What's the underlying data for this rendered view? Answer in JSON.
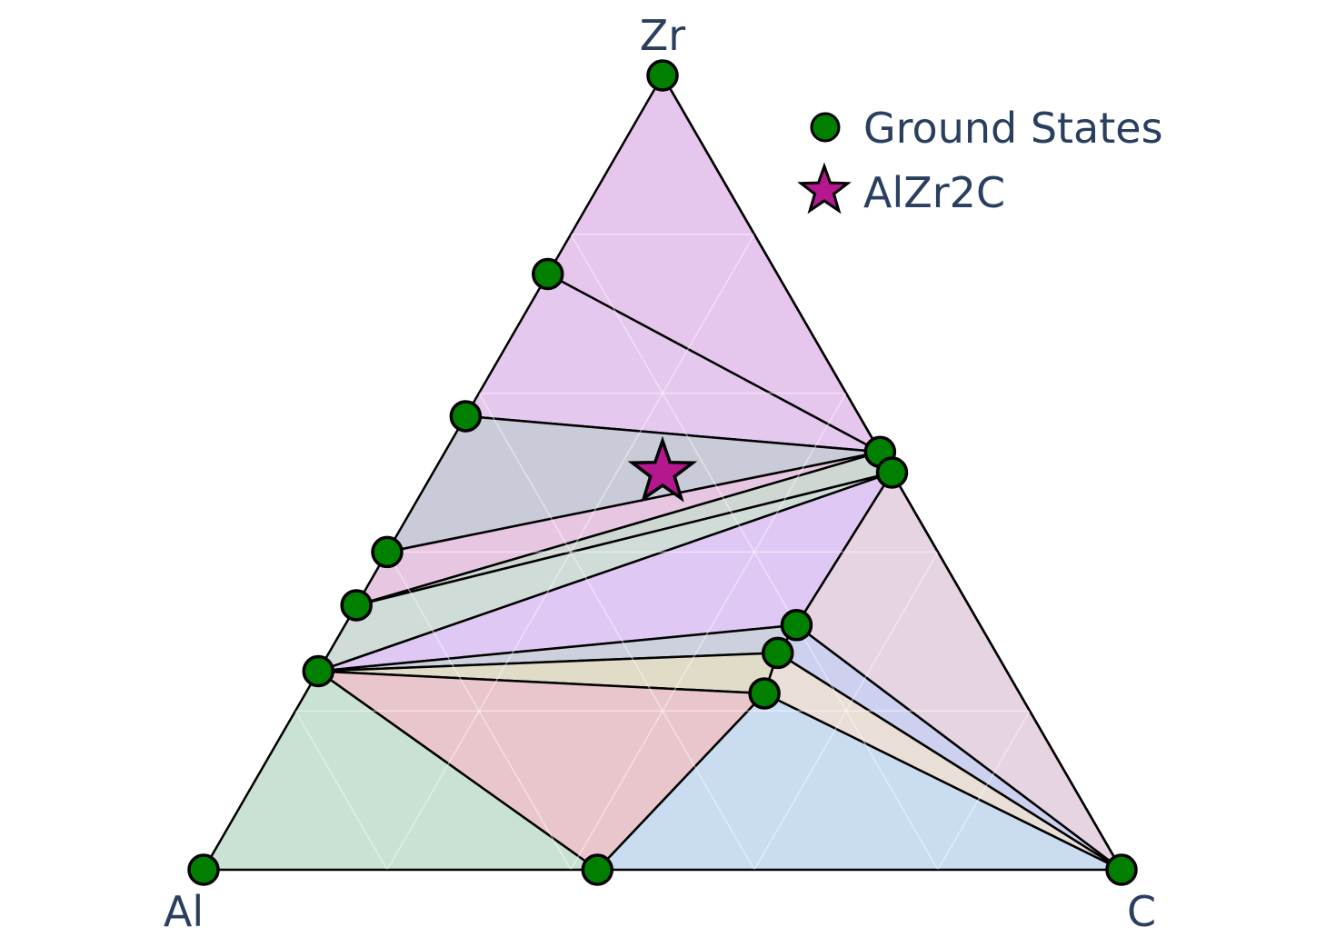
{
  "chart_data": {
    "type": "ternary",
    "corner_labels": {
      "left": "Al",
      "top": "Zr",
      "right": "C"
    },
    "grid": true,
    "legend_position": "top-right",
    "series": [
      {
        "name": "Ground States",
        "marker": "circle",
        "color": "#007f00",
        "points": [
          {
            "Al": 1.0,
            "Zr": 0.0,
            "C": 0.0
          },
          {
            "Al": 0.0,
            "Zr": 1.0,
            "C": 0.0
          },
          {
            "Al": 0.0,
            "Zr": 0.0,
            "C": 1.0
          },
          {
            "Al": 0.571,
            "Zr": 0.0,
            "C": 0.429
          },
          {
            "Al": 0.25,
            "Zr": 0.75,
            "C": 0.0
          },
          {
            "Al": 0.429,
            "Zr": 0.571,
            "C": 0.0
          },
          {
            "Al": 0.6,
            "Zr": 0.4,
            "C": 0.0
          },
          {
            "Al": 0.667,
            "Zr": 0.333,
            "C": 0.0
          },
          {
            "Al": 0.75,
            "Zr": 0.25,
            "C": 0.0
          },
          {
            "Al": 0.0,
            "Zr": 0.526,
            "C": 0.474
          },
          {
            "Al": 0.0,
            "Zr": 0.5,
            "C": 0.5
          },
          {
            "Al": 0.2,
            "Zr": 0.308,
            "C": 0.492
          },
          {
            "Al": 0.238,
            "Zr": 0.273,
            "C": 0.489
          },
          {
            "Al": 0.278,
            "Zr": 0.222,
            "C": 0.5
          }
        ]
      },
      {
        "name": "AlZr2C",
        "marker": "star",
        "color": "#b5178f",
        "points": [
          {
            "Al": 0.25,
            "Zr": 0.5,
            "C": 0.25
          }
        ]
      }
    ],
    "facets": [
      {
        "vertices": [
          1,
          4,
          9
        ],
        "color": "#e6c6ec"
      },
      {
        "vertices": [
          4,
          5,
          9
        ],
        "color": "#e4c8ee"
      },
      {
        "vertices": [
          5,
          6,
          9
        ],
        "color": "#c9ccd8"
      },
      {
        "vertices": [
          6,
          7,
          9
        ],
        "color": "#e7c6e2"
      },
      {
        "vertices": [
          7,
          10,
          9
        ],
        "color": "#cfd7d3"
      },
      {
        "vertices": [
          7,
          8,
          10
        ],
        "color": "#d0dcd8"
      },
      {
        "vertices": [
          8,
          10,
          11
        ],
        "color": "#dfc9f4"
      },
      {
        "vertices": [
          8,
          11,
          12
        ],
        "color": "#ccd1dd"
      },
      {
        "vertices": [
          8,
          12,
          13
        ],
        "color": "#e1dcc7"
      },
      {
        "vertices": [
          8,
          13,
          3
        ],
        "color": "#e9c6cc"
      },
      {
        "vertices": [
          0,
          8,
          3
        ],
        "color": "#c9e2d4"
      },
      {
        "vertices": [
          3,
          13,
          2
        ],
        "color": "#c9dcf0"
      },
      {
        "vertices": [
          13,
          12,
          2
        ],
        "color": "#e9dfd6"
      },
      {
        "vertices": [
          12,
          11,
          2
        ],
        "color": "#cdd0ef"
      },
      {
        "vertices": [
          11,
          10,
          2
        ],
        "color": "#e6d4e3"
      },
      {
        "vertices": [
          1,
          9,
          2
        ],
        "color": "#c4e1e3"
      }
    ]
  }
}
